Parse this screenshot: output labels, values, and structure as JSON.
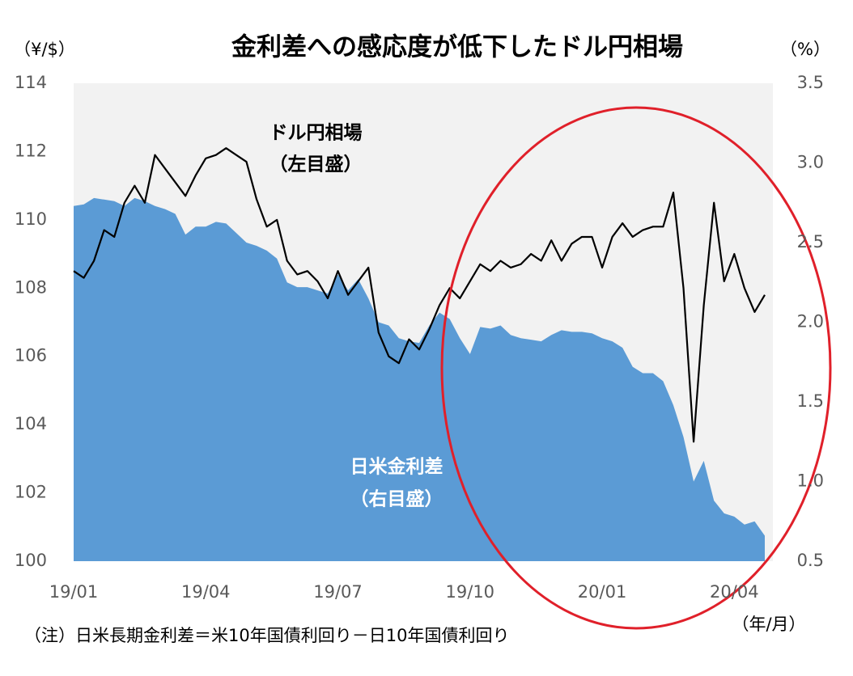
{
  "chart_data": {
    "type": "line",
    "title": "金利差への感応度が低下したドル円相場",
    "y_label": "（¥/$）",
    "y2_label": "（%）",
    "x_label": "（年/月）",
    "footnote": "（注）日米長期金利差＝米10年国債利回り－日10年国債利回り",
    "annotations": [
      {
        "text": "ドル円相場",
        "sub": "（左目盛）"
      },
      {
        "text": "日米金利差",
        "sub": "（右目盛）"
      }
    ],
    "categories": [
      "19/01",
      null,
      null,
      null,
      null,
      null,
      null,
      null,
      null,
      null,
      null,
      null,
      null,
      "19/04",
      null,
      null,
      null,
      null,
      null,
      null,
      null,
      null,
      null,
      null,
      null,
      null,
      "19/07",
      null,
      null,
      null,
      null,
      null,
      null,
      null,
      null,
      null,
      null,
      null,
      null,
      "19/10",
      null,
      null,
      null,
      null,
      null,
      null,
      null,
      null,
      null,
      null,
      null,
      null,
      "20/01",
      null,
      null,
      null,
      null,
      null,
      null,
      null,
      null,
      null,
      null,
      null,
      null,
      "20/04",
      null,
      null,
      null
    ],
    "series": [
      {
        "name": "ドル円相場",
        "color": "#000000",
        "type": "line",
        "axis": "y",
        "values": [
          108.5,
          108.3,
          108.8,
          109.7,
          109.5,
          110.5,
          111.0,
          110.5,
          111.9,
          111.5,
          111.1,
          110.7,
          111.3,
          111.8,
          111.9,
          112.1,
          111.9,
          111.7,
          110.6,
          109.8,
          110.0,
          108.8,
          108.4,
          108.5,
          108.2,
          107.7,
          108.5,
          107.8,
          108.2,
          108.6,
          106.7,
          106.0,
          105.8,
          106.5,
          106.2,
          106.8,
          107.5,
          108.0,
          107.7,
          108.2,
          108.7,
          108.5,
          108.8,
          108.6,
          108.7,
          109.0,
          108.8,
          109.4,
          108.8,
          109.3,
          109.5,
          109.5,
          108.6,
          109.5,
          109.9,
          109.5,
          109.7,
          109.8,
          109.8,
          110.8,
          108.0,
          103.5,
          107.5,
          110.5,
          108.2,
          109.0,
          108.0,
          107.3,
          107.8
        ]
      },
      {
        "name": "日米金利差",
        "color": "#5b9bd5",
        "type": "area",
        "axis": "y2",
        "values": [
          2.73,
          2.74,
          2.78,
          2.77,
          2.76,
          2.73,
          2.78,
          2.76,
          2.73,
          2.71,
          2.68,
          2.55,
          2.6,
          2.6,
          2.63,
          2.62,
          2.56,
          2.5,
          2.48,
          2.45,
          2.4,
          2.25,
          2.22,
          2.22,
          2.2,
          2.18,
          2.3,
          2.2,
          2.27,
          2.15,
          2.0,
          1.98,
          1.9,
          1.88,
          1.87,
          1.98,
          2.06,
          2.02,
          1.9,
          1.8,
          1.97,
          1.96,
          1.98,
          1.92,
          1.9,
          1.89,
          1.88,
          1.92,
          1.95,
          1.94,
          1.94,
          1.93,
          1.9,
          1.88,
          1.84,
          1.72,
          1.68,
          1.68,
          1.63,
          1.48,
          1.28,
          1.0,
          1.13,
          0.88,
          0.8,
          0.78,
          0.73,
          0.75,
          0.66
        ]
      }
    ],
    "ylim": [
      100,
      114
    ],
    "yticks": [
      100,
      102,
      104,
      106,
      108,
      110,
      112,
      114
    ],
    "y2lim": [
      0.5,
      3.5
    ],
    "y2ticks": [
      0.5,
      {
        "value": 1,
        "label": "1.0"
      },
      1.5,
      {
        "value": 2,
        "label": "2.0"
      },
      2.5,
      {
        "value": 3,
        "label": "3.0"
      },
      3.5
    ],
    "plot_background": "#f2f2f2"
  }
}
